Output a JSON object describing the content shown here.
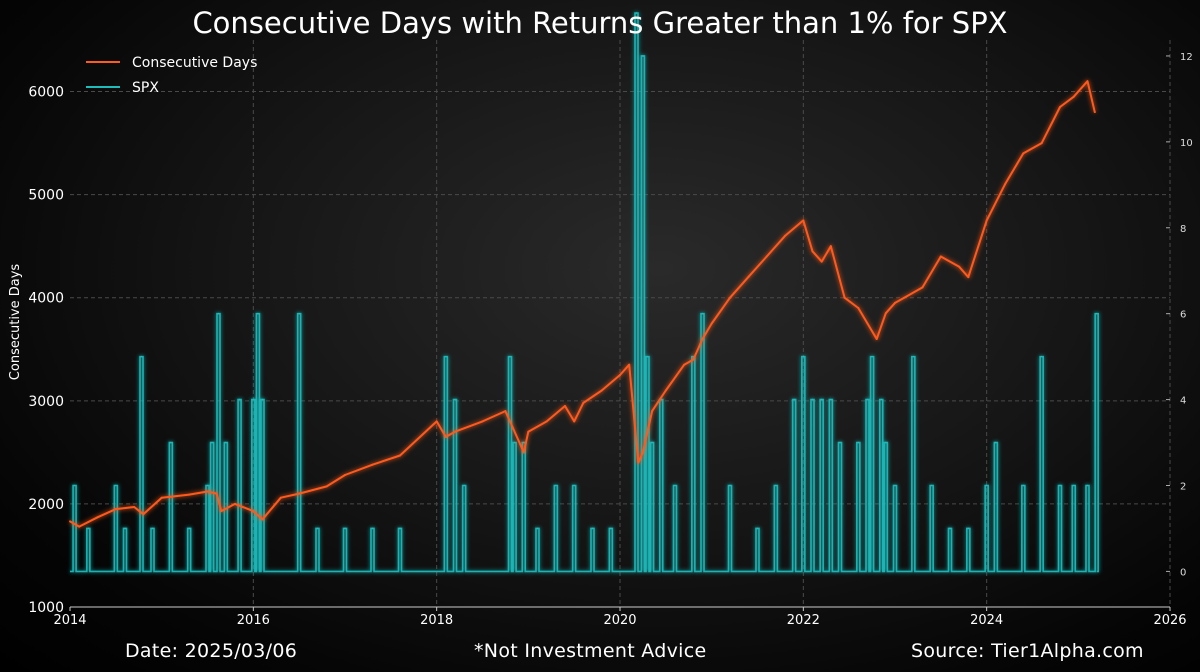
{
  "chart_data": {
    "type": "line",
    "title": "Consecutive Days with Returns Greater than 1% for SPX",
    "ylabel": "Consecutive Days",
    "xlabel": "",
    "xlim": [
      2014,
      2026
    ],
    "ylim": [
      1000,
      6500
    ],
    "y2lim": [
      -0.2,
      13.0
    ],
    "x_ticks": [
      "2014",
      "2016",
      "2018",
      "2020",
      "2022",
      "2024",
      "2026"
    ],
    "x_tick_values": [
      2014,
      2016,
      2018,
      2020,
      2022,
      2024,
      2026
    ],
    "y_ticks": [
      "1000",
      "2000",
      "3000",
      "4000",
      "5000",
      "6000"
    ],
    "y_tick_values": [
      1000,
      2000,
      3000,
      4000,
      5000,
      6000
    ],
    "y2_ticks": [
      "0",
      "2",
      "4",
      "6",
      "8",
      "10",
      "12"
    ],
    "y2_tick_values": [
      0,
      2,
      4,
      6,
      8,
      10,
      12
    ],
    "grid": true,
    "legend_position": "top-left",
    "series": [
      {
        "name": "Consecutive Days",
        "color": "#ff5a1f",
        "axis": "left",
        "x": [
          2014.0,
          2014.1,
          2014.3,
          2014.5,
          2014.7,
          2014.8,
          2015.0,
          2015.3,
          2015.5,
          2015.6,
          2015.65,
          2015.8,
          2016.0,
          2016.1,
          2016.3,
          2016.5,
          2016.8,
          2017.0,
          2017.3,
          2017.6,
          2018.0,
          2018.1,
          2018.2,
          2018.5,
          2018.75,
          2018.95,
          2019.0,
          2019.2,
          2019.4,
          2019.5,
          2019.6,
          2019.8,
          2020.0,
          2020.1,
          2020.2,
          2020.25,
          2020.35,
          2020.5,
          2020.7,
          2020.8,
          2020.9,
          2021.0,
          2021.2,
          2021.4,
          2021.6,
          2021.8,
          2022.0,
          2022.1,
          2022.2,
          2022.3,
          2022.45,
          2022.6,
          2022.8,
          2022.9,
          2023.0,
          2023.1,
          2023.3,
          2023.5,
          2023.7,
          2023.8,
          2024.0,
          2024.2,
          2024.4,
          2024.6,
          2024.8,
          2024.95,
          2025.0,
          2025.1,
          2025.18
        ],
        "values": [
          1830,
          1780,
          1870,
          1950,
          1970,
          1900,
          2060,
          2090,
          2120,
          2100,
          1930,
          2000,
          1930,
          1850,
          2060,
          2100,
          2170,
          2280,
          2380,
          2470,
          2800,
          2650,
          2700,
          2800,
          2900,
          2500,
          2700,
          2800,
          2950,
          2800,
          2980,
          3100,
          3250,
          3350,
          2400,
          2500,
          2900,
          3100,
          3350,
          3400,
          3600,
          3750,
          4000,
          4200,
          4400,
          4600,
          4750,
          4450,
          4350,
          4500,
          4000,
          3900,
          3600,
          3850,
          3950,
          4000,
          4100,
          4400,
          4300,
          4200,
          4750,
          5100,
          5400,
          5500,
          5850,
          5950,
          6000,
          6100,
          5800
        ]
      },
      {
        "name": "SPX",
        "color": "#1fbcbc",
        "axis": "right",
        "spikes": [
          [
            2014.05,
            2
          ],
          [
            2014.2,
            1
          ],
          [
            2014.5,
            2
          ],
          [
            2014.6,
            1
          ],
          [
            2014.78,
            5
          ],
          [
            2014.9,
            1
          ],
          [
            2015.1,
            3
          ],
          [
            2015.3,
            1
          ],
          [
            2015.5,
            2
          ],
          [
            2015.55,
            3
          ],
          [
            2015.62,
            6
          ],
          [
            2015.7,
            3
          ],
          [
            2015.85,
            4
          ],
          [
            2016.0,
            4
          ],
          [
            2016.05,
            6
          ],
          [
            2016.1,
            4
          ],
          [
            2016.5,
            6
          ],
          [
            2016.7,
            1
          ],
          [
            2017.0,
            1
          ],
          [
            2017.3,
            1
          ],
          [
            2017.6,
            1
          ],
          [
            2018.1,
            5
          ],
          [
            2018.2,
            4
          ],
          [
            2018.3,
            2
          ],
          [
            2018.8,
            5
          ],
          [
            2018.85,
            3
          ],
          [
            2018.95,
            3
          ],
          [
            2019.1,
            1
          ],
          [
            2019.3,
            2
          ],
          [
            2019.5,
            2
          ],
          [
            2019.7,
            1
          ],
          [
            2019.9,
            1
          ],
          [
            2020.18,
            13
          ],
          [
            2020.25,
            12
          ],
          [
            2020.3,
            5
          ],
          [
            2020.35,
            3
          ],
          [
            2020.45,
            4
          ],
          [
            2020.6,
            2
          ],
          [
            2020.8,
            5
          ],
          [
            2020.9,
            6
          ],
          [
            2021.2,
            2
          ],
          [
            2021.5,
            1
          ],
          [
            2021.7,
            2
          ],
          [
            2021.9,
            4
          ],
          [
            2022.0,
            5
          ],
          [
            2022.1,
            4
          ],
          [
            2022.2,
            4
          ],
          [
            2022.3,
            4
          ],
          [
            2022.4,
            3
          ],
          [
            2022.6,
            3
          ],
          [
            2022.7,
            4
          ],
          [
            2022.75,
            5
          ],
          [
            2022.85,
            4
          ],
          [
            2022.9,
            3
          ],
          [
            2023.0,
            2
          ],
          [
            2023.2,
            5
          ],
          [
            2023.4,
            2
          ],
          [
            2023.6,
            1
          ],
          [
            2023.8,
            1
          ],
          [
            2024.0,
            2
          ],
          [
            2024.1,
            3
          ],
          [
            2024.4,
            2
          ],
          [
            2024.6,
            5
          ],
          [
            2024.8,
            2
          ],
          [
            2024.95,
            2
          ],
          [
            2025.1,
            2
          ],
          [
            2025.2,
            6
          ]
        ]
      }
    ]
  },
  "footer": {
    "date": "Date: 2025/03/06",
    "disclaimer": "*Not Investment Advice",
    "source": "Source: Tier1Alpha.com"
  }
}
